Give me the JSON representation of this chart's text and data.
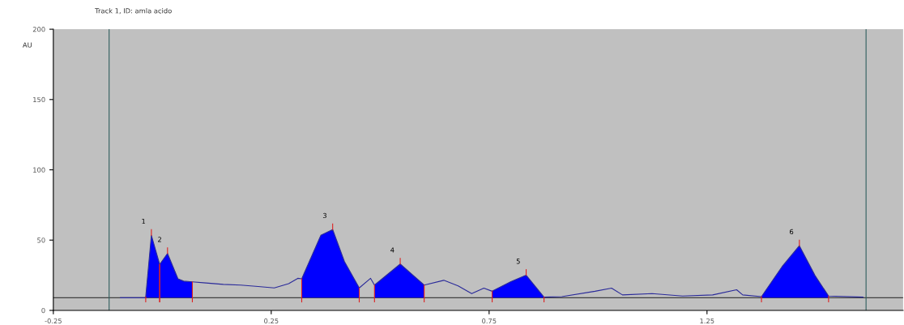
{
  "chart_data": {
    "type": "line",
    "title": "Track 1, ID: amla acido",
    "ylabel": "AU",
    "xlim": [
      -0.25,
      1.7
    ],
    "ylim": [
      0,
      200
    ],
    "xticks": [
      {
        "value": -0.25,
        "label": "-0.25"
      },
      0.25,
      0.75,
      1.25
    ],
    "yticks": [
      0,
      50,
      100,
      150,
      200
    ],
    "grid": false,
    "legend": false,
    "marker": "none",
    "line_style": "solid",
    "series": [
      {
        "color": "#2a2a9a",
        "x": [
          -0.096,
          -0.04,
          -0.038,
          -0.025,
          -0.006,
          0.012,
          0.036,
          0.049,
          0.069,
          0.1,
          0.14,
          0.18,
          0.22,
          0.257,
          0.29,
          0.311,
          0.32,
          0.364,
          0.391,
          0.418,
          0.452,
          0.478,
          0.487,
          0.546,
          0.601,
          0.646,
          0.679,
          0.71,
          0.738,
          0.757,
          0.8,
          0.835,
          0.876,
          0.917,
          0.993,
          1.031,
          1.056,
          1.124,
          1.194,
          1.263,
          1.318,
          1.332,
          1.375,
          1.422,
          1.462,
          1.498,
          1.529,
          1.608
        ],
        "values": [
          9,
          9,
          9.6,
          53.4,
          32.7,
          40.5,
          22.5,
          20.8,
          20.3,
          19.5,
          18.5,
          18,
          17,
          16,
          19,
          22.8,
          22.5,
          53.4,
          57.5,
          34.7,
          16,
          22.8,
          18,
          33,
          18,
          21.4,
          17.4,
          11.9,
          15.8,
          13.6,
          20.5,
          25,
          9.4,
          9.8,
          13.6,
          15.8,
          11,
          11.9,
          10.2,
          11,
          14.7,
          11,
          9.8,
          31,
          46,
          24.7,
          10.2,
          9.4
        ]
      },
      {
        "type": "area",
        "color": "#0000ff",
        "x": [
          -0.038,
          -0.025,
          -0.006
        ],
        "values": [
          9.6,
          53.4,
          32.7
        ]
      },
      {
        "type": "area",
        "color": "#0000ff",
        "x": [
          -0.006,
          0.012,
          0.036,
          0.049,
          0.069
        ],
        "values": [
          32.7,
          40.5,
          22.5,
          20.8,
          20.3
        ]
      },
      {
        "type": "area",
        "color": "#0000ff",
        "x": [
          0.32,
          0.364,
          0.391,
          0.418,
          0.452
        ],
        "values": [
          22.5,
          53.4,
          57.5,
          34.7,
          16
        ]
      },
      {
        "type": "area",
        "color": "#0000ff",
        "x": [
          0.487,
          0.546,
          0.601
        ],
        "values": [
          18,
          33,
          18
        ]
      },
      {
        "type": "area",
        "color": "#0000ff",
        "x": [
          0.757,
          0.8,
          0.835,
          0.876
        ],
        "values": [
          13.6,
          20.5,
          25,
          9.4
        ]
      },
      {
        "type": "area",
        "color": "#0000ff",
        "x": [
          1.375,
          1.422,
          1.462,
          1.498,
          1.529
        ],
        "values": [
          9.8,
          31,
          46,
          24.7,
          10.2
        ]
      }
    ],
    "ref_lines": [
      {
        "axis": "y",
        "value": 9,
        "color": "#404040"
      },
      {
        "axis": "x",
        "value": -0.122,
        "color": "#2f5f5f"
      },
      {
        "axis": "x",
        "value": 1.615,
        "color": "#2f5f5f"
      }
    ],
    "annotations": [
      {
        "text": "1",
        "x": -0.025,
        "y": 53.4
      },
      {
        "text": "2",
        "x": 0.012,
        "y": 40.5
      },
      {
        "text": "3",
        "x": 0.391,
        "y": 57.5
      },
      {
        "text": "4",
        "x": 0.546,
        "y": 33
      },
      {
        "text": "5",
        "x": 0.835,
        "y": 25
      },
      {
        "text": "6",
        "x": 1.462,
        "y": 46
      }
    ]
  }
}
